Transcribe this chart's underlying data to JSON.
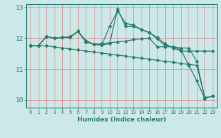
{
  "background_color": "#cce8e8",
  "grid_color": "#e08080",
  "line_color": "#267a6e",
  "marker": "D",
  "marker_size": 2.5,
  "xlabel": "Humidex (Indice chaleur)",
  "ylim": [
    9.75,
    13.1
  ],
  "xlim": [
    -0.5,
    23.5
  ],
  "yticks": [
    10,
    11,
    12,
    13
  ],
  "xticks": [
    0,
    1,
    2,
    3,
    4,
    5,
    6,
    7,
    8,
    9,
    10,
    11,
    12,
    13,
    14,
    15,
    16,
    17,
    18,
    19,
    20,
    21,
    22,
    23
  ],
  "series": [
    [
      11.75,
      11.75,
      12.05,
      12.0,
      12.02,
      12.05,
      12.22,
      11.88,
      11.8,
      11.82,
      11.85,
      11.88,
      11.9,
      11.95,
      11.98,
      12.0,
      11.72,
      11.72,
      11.72,
      11.68,
      11.68,
      11.25,
      10.05,
      10.12
    ],
    [
      11.75,
      11.75,
      12.05,
      12.0,
      12.02,
      12.02,
      12.22,
      11.92,
      11.8,
      11.78,
      12.38,
      12.88,
      12.48,
      12.42,
      12.28,
      12.18,
      11.98,
      11.75,
      11.72,
      11.62,
      11.12,
      10.62,
      10.05,
      10.12
    ],
    [
      11.75,
      11.75,
      12.05,
      12.0,
      12.02,
      12.02,
      12.22,
      11.88,
      11.8,
      11.78,
      11.82,
      12.95,
      12.38,
      12.38,
      12.28,
      12.18,
      12.02,
      11.82,
      11.68,
      11.58,
      11.58,
      11.58,
      11.58,
      11.58
    ],
    [
      11.75,
      11.75,
      11.75,
      11.72,
      11.68,
      11.65,
      11.62,
      11.58,
      11.55,
      11.52,
      11.48,
      11.45,
      11.42,
      11.38,
      11.35,
      11.32,
      11.28,
      11.25,
      11.22,
      11.18,
      11.15,
      11.12,
      10.08,
      10.12
    ]
  ]
}
